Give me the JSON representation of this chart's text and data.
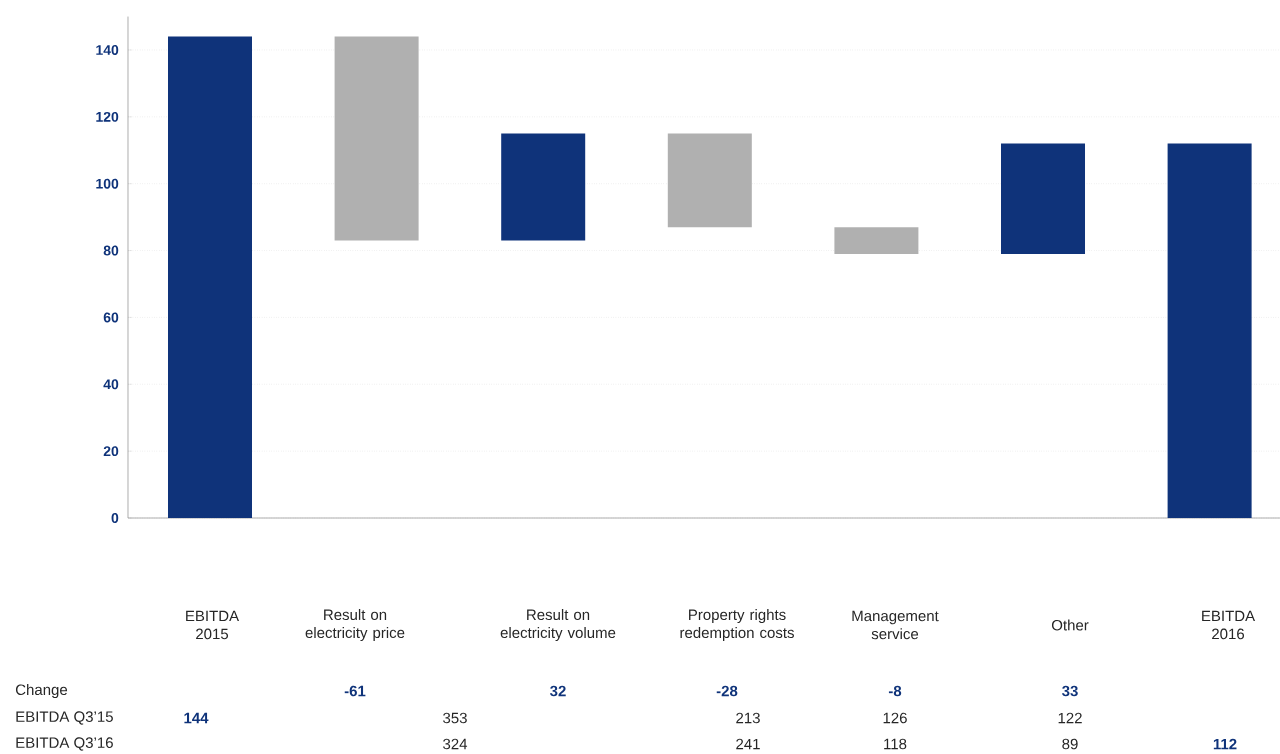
{
  "chart_data": {
    "type": "bar",
    "categories": [
      "EBITDA 2015",
      "Result on electricity price",
      "Result on electricity volume",
      "Property rights redemption costs",
      "Management service",
      "Other",
      "EBITDA 2016"
    ],
    "values": [
      144,
      -61,
      32,
      -28,
      -8,
      33,
      112
    ],
    "base": [
      0,
      144,
      83,
      115,
      87,
      79,
      0
    ],
    "colors": [
      "#0f337a",
      "#b0b0b0",
      "#0f337a",
      "#b0b0b0",
      "#b0b0b0",
      "#0f337a",
      "#0f337a"
    ],
    "ylim": [
      0,
      150
    ],
    "yticks": [
      0,
      20,
      40,
      60,
      80,
      100,
      120,
      140
    ],
    "grid": "y",
    "annotations": [
      "Change",
      "EBITDA Q3’15",
      "EBITDA Q3’16",
      "353",
      "213",
      "126",
      "122",
      "324",
      "241",
      "118",
      "89",
      "144",
      "-61",
      "32",
      "-28",
      "-8",
      "33",
      "112"
    ]
  }
}
